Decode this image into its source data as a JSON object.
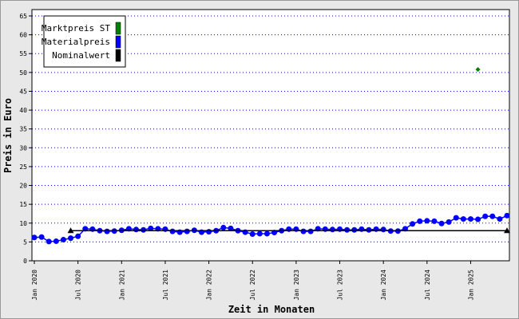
{
  "chart_data": {
    "type": "line",
    "xlabel": "Zeit in Monaten",
    "ylabel": "Preis in Euro",
    "x": [
      "2020-01",
      "2020-02",
      "2020-03",
      "2020-04",
      "2020-05",
      "2020-06",
      "2020-07",
      "2020-08",
      "2020-09",
      "2020-10",
      "2020-11",
      "2020-12",
      "2021-01",
      "2021-02",
      "2021-03",
      "2021-04",
      "2021-05",
      "2021-06",
      "2021-07",
      "2021-08",
      "2021-09",
      "2021-10",
      "2021-11",
      "2021-12",
      "2022-01",
      "2022-02",
      "2022-03",
      "2022-04",
      "2022-05",
      "2022-06",
      "2022-07",
      "2022-08",
      "2022-09",
      "2022-10",
      "2022-11",
      "2022-12",
      "2023-01",
      "2023-02",
      "2023-03",
      "2023-04",
      "2023-05",
      "2023-06",
      "2023-07",
      "2023-08",
      "2023-09",
      "2023-10",
      "2023-11",
      "2023-12",
      "2024-01",
      "2024-02",
      "2024-03",
      "2024-04",
      "2024-05",
      "2024-06",
      "2024-07",
      "2024-08",
      "2024-09",
      "2024-10",
      "2024-11",
      "2024-12",
      "2025-01",
      "2025-02",
      "2025-03",
      "2025-04",
      "2025-05",
      "2025-06"
    ],
    "xlim": [
      "2020-01",
      "2025-06"
    ],
    "xticks": [
      {
        "value": "2020-01",
        "label": "Jan 2020"
      },
      {
        "value": "2020-07",
        "label": "Jul 2020"
      },
      {
        "value": "2021-01",
        "label": "Jan 2021"
      },
      {
        "value": "2021-07",
        "label": "Jul 2021"
      },
      {
        "value": "2022-01",
        "label": "Jan 2022"
      },
      {
        "value": "2022-07",
        "label": "Jul 2022"
      },
      {
        "value": "2023-01",
        "label": "Jan 2023"
      },
      {
        "value": "2023-07",
        "label": "Jul 2023"
      },
      {
        "value": "2024-01",
        "label": "Jan 2024"
      },
      {
        "value": "2024-07",
        "label": "Jul 2024"
      },
      {
        "value": "2025-01",
        "label": "Jan 2025"
      }
    ],
    "ylim": [
      0,
      65
    ],
    "yticks": [
      0,
      5,
      10,
      15,
      20,
      25,
      30,
      35,
      40,
      45,
      50,
      55,
      60,
      65
    ],
    "grid": true,
    "legend": "top-left",
    "series": [
      {
        "name": "Marktpreis ST",
        "color": "#008000",
        "marker": "diamond",
        "x": [
          "2025-02"
        ],
        "values": [
          50.8
        ]
      },
      {
        "name": "Materialpreis",
        "color": "#0000ff",
        "marker": "circle",
        "values": [
          6.2,
          6.3,
          5.1,
          5.2,
          5.6,
          6.0,
          6.5,
          8.5,
          8.4,
          8.0,
          7.8,
          7.9,
          8.1,
          8.5,
          8.3,
          8.2,
          8.6,
          8.5,
          8.4,
          7.8,
          7.6,
          7.8,
          8.1,
          7.6,
          7.7,
          8.0,
          8.8,
          8.6,
          8.0,
          7.6,
          7.1,
          7.2,
          7.2,
          7.5,
          8.0,
          8.4,
          8.4,
          7.8,
          7.8,
          8.5,
          8.4,
          8.3,
          8.4,
          8.2,
          8.2,
          8.4,
          8.2,
          8.4,
          8.3,
          7.9,
          7.9,
          8.5,
          9.8,
          10.5,
          10.6,
          10.5,
          9.9,
          10.3,
          11.4,
          11.1,
          11.1,
          11.0,
          11.8,
          11.8,
          11.1,
          12.0
        ]
      },
      {
        "name": "Nominalwert",
        "color": "#000000",
        "marker": "triangle",
        "x": [
          "2020-06",
          "2025-06"
        ],
        "values": [
          8,
          8
        ]
      }
    ]
  }
}
